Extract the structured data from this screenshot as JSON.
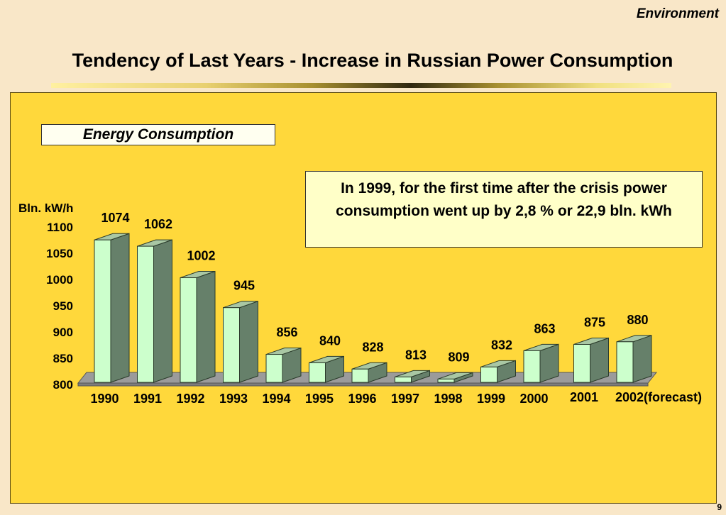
{
  "header": {
    "section": "Environment",
    "title": "Tendency of Last Years - Increase in Russian Power Consumption"
  },
  "note": {
    "text": "In 1999, for the first time after the crisis power consumption went up by 2,8 % or 22,9 bln. kWh"
  },
  "page_number": "9",
  "colors": {
    "background": "#f9e7c8",
    "panel": "#ffd83b",
    "bar_front": "#ccffcc",
    "bar_side": "#66806a",
    "bar_top": "#a9c7a4",
    "floor": "#9b9b9b"
  },
  "chart_data": {
    "type": "bar",
    "title": "Energy Consumption",
    "ylabel": "Bln. kW/h",
    "categories": [
      "1990",
      "1991",
      "1992",
      "1993",
      "1994",
      "1995",
      "1996",
      "1997",
      "1998",
      "1999",
      "2000",
      "2001",
      "2002(forecast)"
    ],
    "values": [
      1074,
      1062,
      1002,
      945,
      856,
      840,
      828,
      813,
      809,
      832,
      863,
      875,
      880
    ],
    "ylim": [
      800,
      1100
    ],
    "yticks": [
      800,
      850,
      900,
      950,
      1000,
      1050,
      1100
    ],
    "grid": false,
    "style": "3d"
  }
}
